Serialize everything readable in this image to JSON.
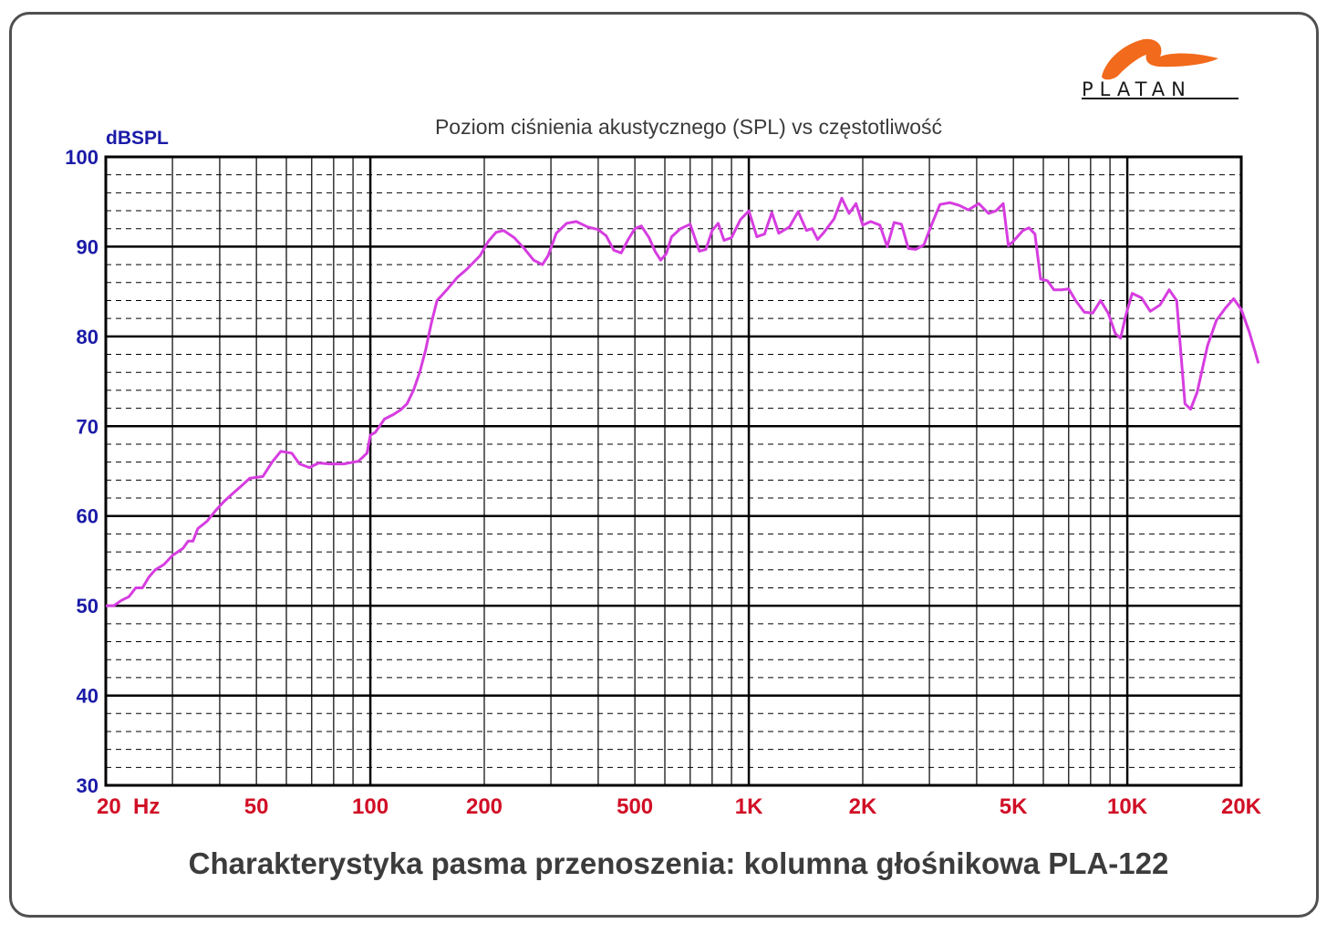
{
  "brand": {
    "name": "PLATAN",
    "logo_color": "#f26a1b"
  },
  "subtitle": "Poziom ciśnienia akustycznego (SPL) vs częstotliwość",
  "caption": "Charakterystyka pasma przenoszenia: kolumna głośnikowa PLA-122",
  "chart_data": {
    "type": "line",
    "title": "Poziom ciśnienia akustycznego (SPL) vs częstotliwość",
    "ylabel": "dBSPL",
    "xlabel": "",
    "xscale": "log",
    "xlim": [
      20,
      20000
    ],
    "ylim": [
      30,
      100
    ],
    "grid": true,
    "line_color": "#d63de0",
    "y_ticks": [
      "30",
      "40",
      "50",
      "60",
      "70",
      "80",
      "90",
      "100"
    ],
    "x_tick_labels": [
      {
        "value": 20,
        "label": "20  Hz"
      },
      {
        "value": 50,
        "label": "50"
      },
      {
        "value": 100,
        "label": "100"
      },
      {
        "value": 200,
        "label": "200"
      },
      {
        "value": 500,
        "label": "500"
      },
      {
        "value": 1000,
        "label": "1K"
      },
      {
        "value": 2000,
        "label": "2K"
      },
      {
        "value": 5000,
        "label": "5K"
      },
      {
        "value": 10000,
        "label": "10K"
      },
      {
        "value": 20000,
        "label": "20K"
      }
    ],
    "series": [
      {
        "points": [
          [
            20,
            50
          ],
          [
            21,
            50
          ],
          [
            22,
            50.6
          ],
          [
            23,
            51
          ],
          [
            24,
            52
          ],
          [
            25,
            52
          ],
          [
            26,
            53.2
          ],
          [
            27,
            54
          ],
          [
            28.5,
            54.6
          ],
          [
            30,
            55.6
          ],
          [
            32,
            56.4
          ],
          [
            33,
            57.2
          ],
          [
            34,
            57.2
          ],
          [
            35,
            58.6
          ],
          [
            37,
            59.4
          ],
          [
            39,
            60.6
          ],
          [
            41,
            61.6
          ],
          [
            43,
            62.4
          ],
          [
            45.5,
            63.3
          ],
          [
            48,
            64.2
          ],
          [
            52,
            64.4
          ],
          [
            55,
            66
          ],
          [
            58,
            67.2
          ],
          [
            62,
            67
          ],
          [
            65,
            65.8
          ],
          [
            69,
            65.4
          ],
          [
            73,
            65.9
          ],
          [
            78,
            65.8
          ],
          [
            85,
            65.8
          ],
          [
            93,
            66.1
          ],
          [
            98,
            67
          ],
          [
            100,
            69
          ],
          [
            103,
            69.3
          ],
          [
            109,
            70.8
          ],
          [
            115,
            71.3
          ],
          [
            120,
            71.8
          ],
          [
            125,
            72.5
          ],
          [
            130,
            74
          ],
          [
            135,
            76
          ],
          [
            140,
            78.5
          ],
          [
            145,
            81.5
          ],
          [
            150,
            84
          ],
          [
            160,
            85.3
          ],
          [
            170,
            86.6
          ],
          [
            180,
            87.5
          ],
          [
            195,
            89
          ],
          [
            205,
            90.6
          ],
          [
            215,
            91.6
          ],
          [
            225,
            91.8
          ],
          [
            240,
            91
          ],
          [
            255,
            89.8
          ],
          [
            270,
            88.5
          ],
          [
            285,
            88
          ],
          [
            295,
            89
          ],
          [
            310,
            91.5
          ],
          [
            330,
            92.6
          ],
          [
            350,
            92.8
          ],
          [
            375,
            92.2
          ],
          [
            400,
            91.9
          ],
          [
            420,
            91.2
          ],
          [
            440,
            89.6
          ],
          [
            460,
            89.3
          ],
          [
            480,
            90.8
          ],
          [
            500,
            92
          ],
          [
            520,
            92.3
          ],
          [
            545,
            91
          ],
          [
            565,
            89.5
          ],
          [
            585,
            88.5
          ],
          [
            605,
            89.2
          ],
          [
            625,
            91.1
          ],
          [
            660,
            92
          ],
          [
            700,
            92.5
          ],
          [
            740,
            89.5
          ],
          [
            770,
            89.7
          ],
          [
            800,
            91.8
          ],
          [
            830,
            92.6
          ],
          [
            860,
            90.7
          ],
          [
            900,
            91
          ],
          [
            950,
            93
          ],
          [
            1000,
            94
          ],
          [
            1050,
            91.1
          ],
          [
            1100,
            91.4
          ],
          [
            1150,
            93.8
          ],
          [
            1200,
            91.5
          ],
          [
            1280,
            92.2
          ],
          [
            1350,
            93.9
          ],
          [
            1420,
            91.8
          ],
          [
            1470,
            92
          ],
          [
            1520,
            90.8
          ],
          [
            1580,
            91.6
          ],
          [
            1680,
            93.1
          ],
          [
            1760,
            95.4
          ],
          [
            1840,
            93.7
          ],
          [
            1920,
            94.8
          ],
          [
            2000,
            92.4
          ],
          [
            2100,
            92.8
          ],
          [
            2220,
            92.4
          ],
          [
            2320,
            90
          ],
          [
            2420,
            92.7
          ],
          [
            2530,
            92.5
          ],
          [
            2640,
            89.8
          ],
          [
            2760,
            89.7
          ],
          [
            2900,
            90.2
          ],
          [
            3050,
            92.6
          ],
          [
            3200,
            94.7
          ],
          [
            3400,
            94.9
          ],
          [
            3600,
            94.6
          ],
          [
            3800,
            94.1
          ],
          [
            4050,
            94.8
          ],
          [
            4300,
            93.7
          ],
          [
            4500,
            94
          ],
          [
            4700,
            94.8
          ],
          [
            4850,
            90.1
          ],
          [
            5000,
            90.6
          ],
          [
            5300,
            91.8
          ],
          [
            5500,
            92.1
          ],
          [
            5700,
            91.4
          ],
          [
            5900,
            86.4
          ],
          [
            6150,
            86.2
          ],
          [
            6400,
            85.2
          ],
          [
            6700,
            85.2
          ],
          [
            7000,
            85.3
          ],
          [
            7300,
            84
          ],
          [
            7700,
            82.7
          ],
          [
            8100,
            82.6
          ],
          [
            8500,
            84
          ],
          [
            8900,
            82.6
          ],
          [
            9300,
            80.3
          ],
          [
            9600,
            79.8
          ],
          [
            9900,
            82.3
          ],
          [
            10300,
            84.8
          ],
          [
            10900,
            84.3
          ],
          [
            11500,
            82.8
          ],
          [
            12200,
            83.5
          ],
          [
            12900,
            85.2
          ],
          [
            13500,
            84
          ],
          [
            14200,
            72.5
          ],
          [
            14700,
            71.9
          ],
          [
            15300,
            73.8
          ],
          [
            16300,
            79
          ],
          [
            17200,
            81.8
          ],
          [
            18200,
            83.2
          ],
          [
            19100,
            84.2
          ],
          [
            20000,
            83
          ],
          [
            21000,
            80.5
          ],
          [
            21800,
            78.2
          ],
          [
            22200,
            77
          ]
        ]
      }
    ]
  }
}
